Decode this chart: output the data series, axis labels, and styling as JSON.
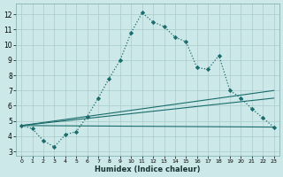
{
  "xlabel": "Humidex (Indice chaleur)",
  "background_color": "#cce8e8",
  "grid_color": "#aacccc",
  "line_color": "#1a6b6b",
  "xlim": [
    -0.5,
    23.5
  ],
  "ylim": [
    2.7,
    12.7
  ],
  "yticks": [
    3,
    4,
    5,
    6,
    7,
    8,
    9,
    10,
    11,
    12
  ],
  "xticks": [
    0,
    1,
    2,
    3,
    4,
    5,
    6,
    7,
    8,
    9,
    10,
    11,
    12,
    13,
    14,
    15,
    16,
    17,
    18,
    19,
    20,
    21,
    22,
    23
  ],
  "line1_x": [
    0,
    1,
    2,
    3,
    4,
    5,
    6,
    7,
    8,
    9,
    10,
    11,
    12,
    13,
    14,
    15,
    16,
    17,
    18,
    19,
    20,
    21,
    22,
    23
  ],
  "line1_y": [
    4.7,
    4.5,
    3.7,
    3.3,
    4.1,
    4.3,
    5.3,
    6.5,
    7.8,
    9.0,
    10.8,
    12.1,
    11.5,
    11.2,
    10.5,
    10.2,
    8.5,
    8.4,
    9.3,
    7.0,
    6.5,
    5.8,
    5.2,
    4.6
  ],
  "line2_x": [
    0,
    23
  ],
  "line2_y": [
    4.7,
    7.0
  ],
  "line3_x": [
    0,
    23
  ],
  "line3_y": [
    4.7,
    6.5
  ],
  "line4_x": [
    0,
    23
  ],
  "line4_y": [
    4.7,
    4.6
  ]
}
